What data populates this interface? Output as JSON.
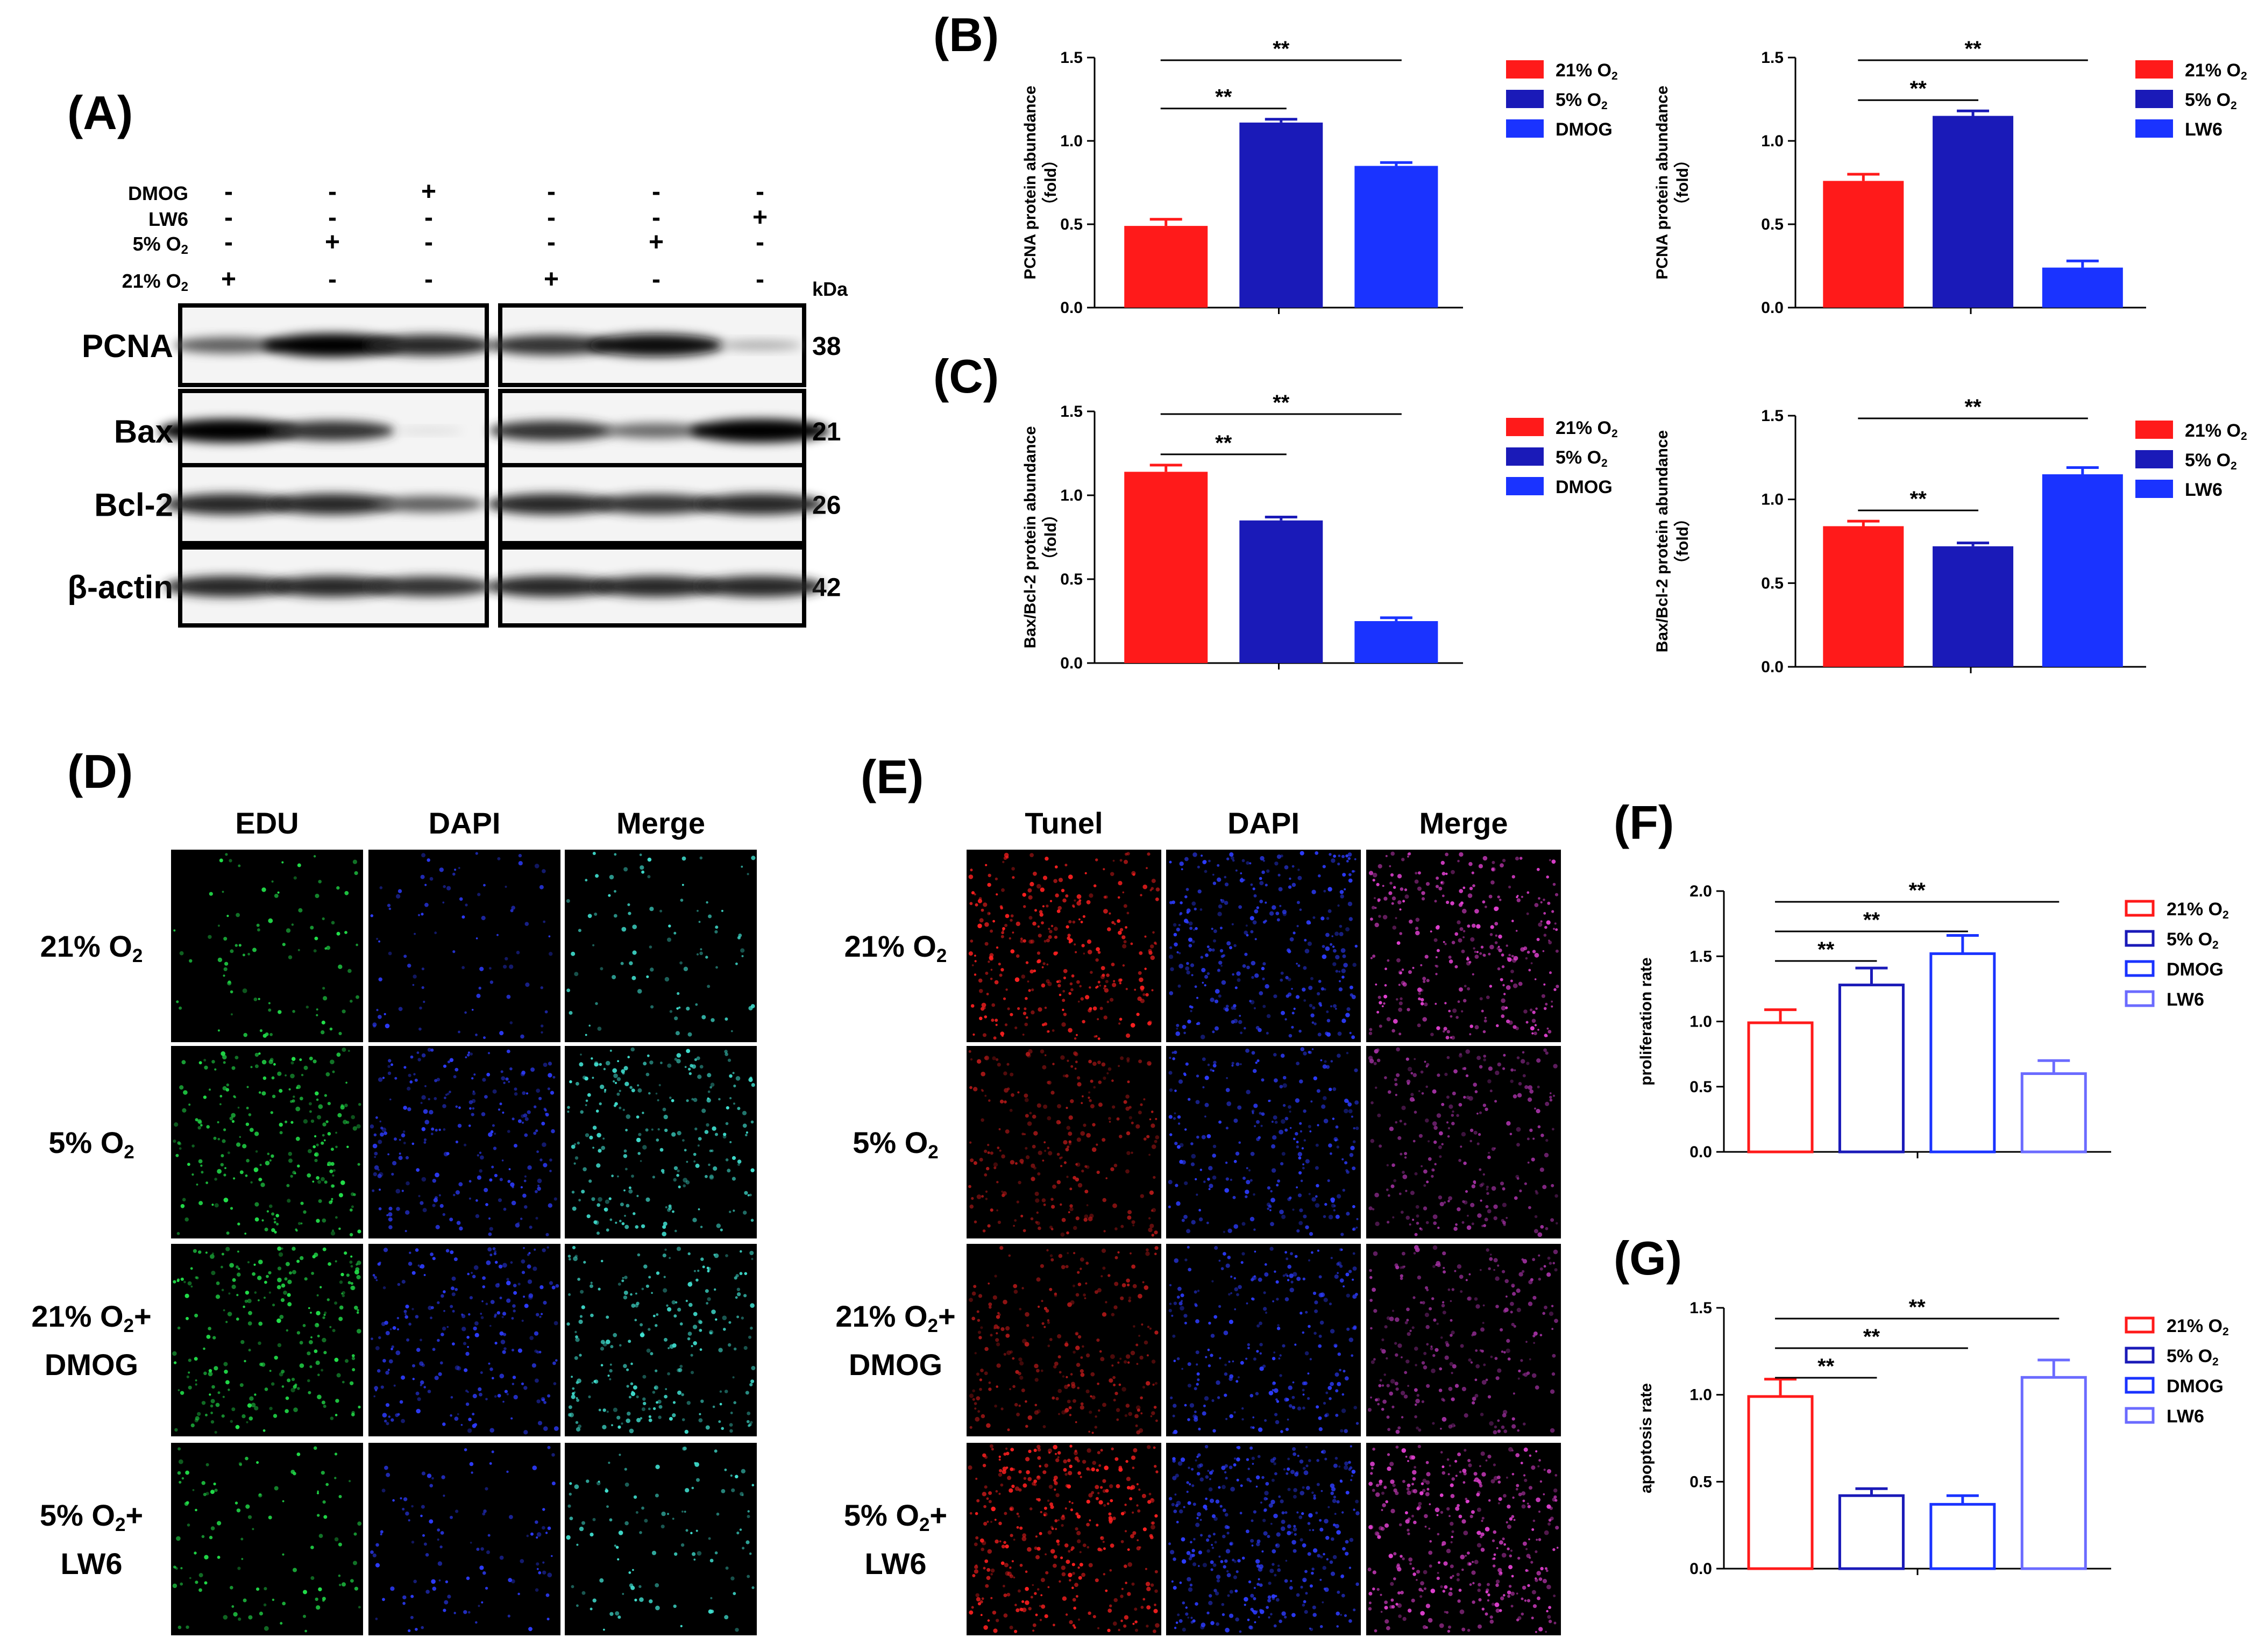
{
  "panel_letters": [
    "(A)",
    "(B)",
    "(C)",
    "(D)",
    "(E)",
    "(F)",
    "(G)"
  ],
  "colors": {
    "red": "#ff1a1a",
    "navy": "#1a1ab8",
    "blue": "#1a33ff",
    "light_blue": "#6b6bff",
    "edu_green": "#22e04a",
    "dapi_blue": "#2d3cff",
    "tunel_red": "#ff2020",
    "merge_magenta": "#e040d0",
    "merge_cyan": "#40e0d0"
  },
  "western_blot": {
    "treatments": [
      {
        "label": "DMOG",
        "signs": [
          "-",
          "-",
          "+",
          "-",
          "-",
          "-"
        ]
      },
      {
        "label": "LW6",
        "signs": [
          "-",
          "-",
          "-",
          "-",
          "-",
          "+"
        ]
      },
      {
        "label": "5% O2",
        "signs": [
          "-",
          "+",
          "-",
          "-",
          "+",
          "-"
        ]
      },
      {
        "label": "21% O2",
        "signs": [
          "+",
          "-",
          "-",
          "+",
          "-",
          "-"
        ]
      }
    ],
    "kda_label": "kDa",
    "bands": [
      {
        "label": "PCNA",
        "kda": "38",
        "intensity": [
          0.6,
          1.0,
          0.85,
          0.8,
          0.95,
          0.25
        ]
      },
      {
        "label": "Bax",
        "kda": "21",
        "intensity": [
          1.0,
          0.8,
          0.05,
          0.8,
          0.55,
          1.0
        ]
      },
      {
        "label": "Bcl-2",
        "kda": "26",
        "intensity": [
          0.85,
          0.85,
          0.6,
          0.85,
          0.8,
          0.85
        ]
      },
      {
        "label": "β-actin",
        "kda": "42",
        "intensity": [
          0.85,
          0.85,
          0.8,
          0.85,
          0.85,
          0.85
        ]
      }
    ]
  },
  "chart_data": [
    {
      "id": "B-left",
      "type": "bar",
      "ylabel": "PCNA protein abundance",
      "ylabel2": "（fold）",
      "yticks": [
        "0.0",
        "0.5",
        "1.0",
        "1.5"
      ],
      "ylim": [
        0,
        1.5
      ],
      "categories": [
        "21% O2",
        "5% O2",
        "DMOG"
      ],
      "values": [
        0.49,
        1.11,
        0.85
      ],
      "errors": [
        0.04,
        0.02,
        0.02
      ],
      "fill": "solid",
      "colors": [
        "#ff1a1a",
        "#1a1ab8",
        "#1a33ff"
      ],
      "legend": [
        "21% O",
        "5% O",
        "DMOG"
      ],
      "legend_sub": [
        "2",
        "2",
        ""
      ],
      "sig": [
        {
          "from": 0,
          "to": 1,
          "label": "**"
        },
        {
          "from": 0,
          "to": 2,
          "label": "**"
        }
      ]
    },
    {
      "id": "B-right",
      "type": "bar",
      "ylabel": "PCNA protein abundance",
      "ylabel2": "（fold）",
      "yticks": [
        "0.0",
        "0.5",
        "1.0",
        "1.5"
      ],
      "ylim": [
        0,
        1.5
      ],
      "categories": [
        "21% O2",
        "5% O2",
        "LW6"
      ],
      "values": [
        0.76,
        1.15,
        0.24
      ],
      "errors": [
        0.04,
        0.03,
        0.04
      ],
      "fill": "solid",
      "colors": [
        "#ff1a1a",
        "#1a1ab8",
        "#1a33ff"
      ],
      "legend": [
        "21% O",
        "5% O",
        "LW6"
      ],
      "legend_sub": [
        "2",
        "2",
        ""
      ],
      "sig": [
        {
          "from": 0,
          "to": 1,
          "label": "**"
        },
        {
          "from": 0,
          "to": 2,
          "label": "**"
        }
      ]
    },
    {
      "id": "C-left",
      "type": "bar",
      "ylabel": "Bax/Bcl-2 protein abundance",
      "ylabel2": "（fold）",
      "yticks": [
        "0.0",
        "0.5",
        "1.0",
        "1.5"
      ],
      "ylim": [
        0,
        1.5
      ],
      "categories": [
        "21% O2",
        "5% O2",
        "DMOG"
      ],
      "values": [
        1.14,
        0.85,
        0.25
      ],
      "errors": [
        0.04,
        0.02,
        0.02
      ],
      "fill": "solid",
      "colors": [
        "#ff1a1a",
        "#1a1ab8",
        "#1a33ff"
      ],
      "legend": [
        "21% O",
        "5% O",
        "DMOG"
      ],
      "legend_sub": [
        "2",
        "2",
        ""
      ],
      "sig": [
        {
          "from": 0,
          "to": 1,
          "label": "**"
        },
        {
          "from": 0,
          "to": 2,
          "label": "**"
        }
      ]
    },
    {
      "id": "C-right",
      "type": "bar",
      "ylabel": "Bax/Bcl-2 protein abundance",
      "ylabel2": "（fold）",
      "yticks": [
        "0.0",
        "0.5",
        "1.0",
        "1.5"
      ],
      "ylim": [
        0,
        1.5
      ],
      "categories": [
        "21% O2",
        "5% O2",
        "LW6"
      ],
      "values": [
        0.84,
        0.72,
        1.15
      ],
      "errors": [
        0.03,
        0.02,
        0.04
      ],
      "fill": "solid",
      "colors": [
        "#ff1a1a",
        "#1a1ab8",
        "#1a33ff"
      ],
      "legend": [
        "21% O",
        "5% O",
        "LW6"
      ],
      "legend_sub": [
        "2",
        "2",
        ""
      ],
      "sig": [
        {
          "from": 0,
          "to": 1,
          "label": "**"
        },
        {
          "from": 0,
          "to": 2,
          "label": "**"
        }
      ]
    },
    {
      "id": "F",
      "type": "bar",
      "ylabel": "proliferation rate",
      "ylabel2": "",
      "yticks": [
        "0.0",
        "0.5",
        "1.0",
        "1.5",
        "2.0"
      ],
      "ylim": [
        0,
        2.0
      ],
      "categories": [
        "21% O2",
        "5% O2",
        "DMOG",
        "LW6"
      ],
      "values": [
        0.99,
        1.28,
        1.52,
        0.6
      ],
      "errors": [
        0.1,
        0.13,
        0.14,
        0.1
      ],
      "fill": "open",
      "colors": [
        "#ff1a1a",
        "#1a1ab8",
        "#1a33ff",
        "#6b6bff"
      ],
      "legend": [
        "21% O",
        "5% O",
        "DMOG",
        "LW6"
      ],
      "legend_sub": [
        "2",
        "2",
        "",
        ""
      ],
      "sig": [
        {
          "from": 0,
          "to": 1,
          "label": "**"
        },
        {
          "from": 0,
          "to": 2,
          "label": "**"
        },
        {
          "from": 0,
          "to": 3,
          "label": "**"
        }
      ]
    },
    {
      "id": "G",
      "type": "bar",
      "ylabel": "apoptosis rate",
      "ylabel2": "",
      "yticks": [
        "0.0",
        "0.5",
        "1.0",
        "1.5"
      ],
      "ylim": [
        0,
        1.5
      ],
      "categories": [
        "21% O2",
        "5% O2",
        "DMOG",
        "LW6"
      ],
      "values": [
        0.99,
        0.42,
        0.37,
        1.1
      ],
      "errors": [
        0.1,
        0.04,
        0.05,
        0.1
      ],
      "fill": "open",
      "colors": [
        "#ff1a1a",
        "#1a1ab8",
        "#1a33ff",
        "#6b6bff"
      ],
      "legend": [
        "21% O",
        "5% O",
        "DMOG",
        "LW6"
      ],
      "legend_sub": [
        "2",
        "2",
        "",
        ""
      ],
      "sig": [
        {
          "from": 0,
          "to": 1,
          "label": "**"
        },
        {
          "from": 0,
          "to": 2,
          "label": "**"
        },
        {
          "from": 0,
          "to": 3,
          "label": "**"
        }
      ]
    }
  ],
  "microscopy": {
    "D": {
      "columns": [
        "EDU",
        "DAPI",
        "Merge"
      ],
      "rows": [
        {
          "line1": "21% O",
          "sub": "2",
          "line2": ""
        },
        {
          "line1": "5% O",
          "sub": "2",
          "line2": ""
        },
        {
          "line1": "21% O",
          "sub": "2",
          "plus": "+",
          "line2": "DMOG"
        },
        {
          "line1": "5% O",
          "sub": "2",
          "plus": "+",
          "line2": "LW6"
        }
      ]
    },
    "E": {
      "columns": [
        "Tunel",
        "DAPI",
        "Merge"
      ],
      "rows": [
        {
          "line1": "21% O",
          "sub": "2",
          "line2": ""
        },
        {
          "line1": "5% O",
          "sub": "2",
          "line2": ""
        },
        {
          "line1": "21% O",
          "sub": "2",
          "plus": "+",
          "line2": "DMOG"
        },
        {
          "line1": "5% O",
          "sub": "2",
          "plus": "+",
          "line2": "LW6"
        }
      ]
    }
  }
}
